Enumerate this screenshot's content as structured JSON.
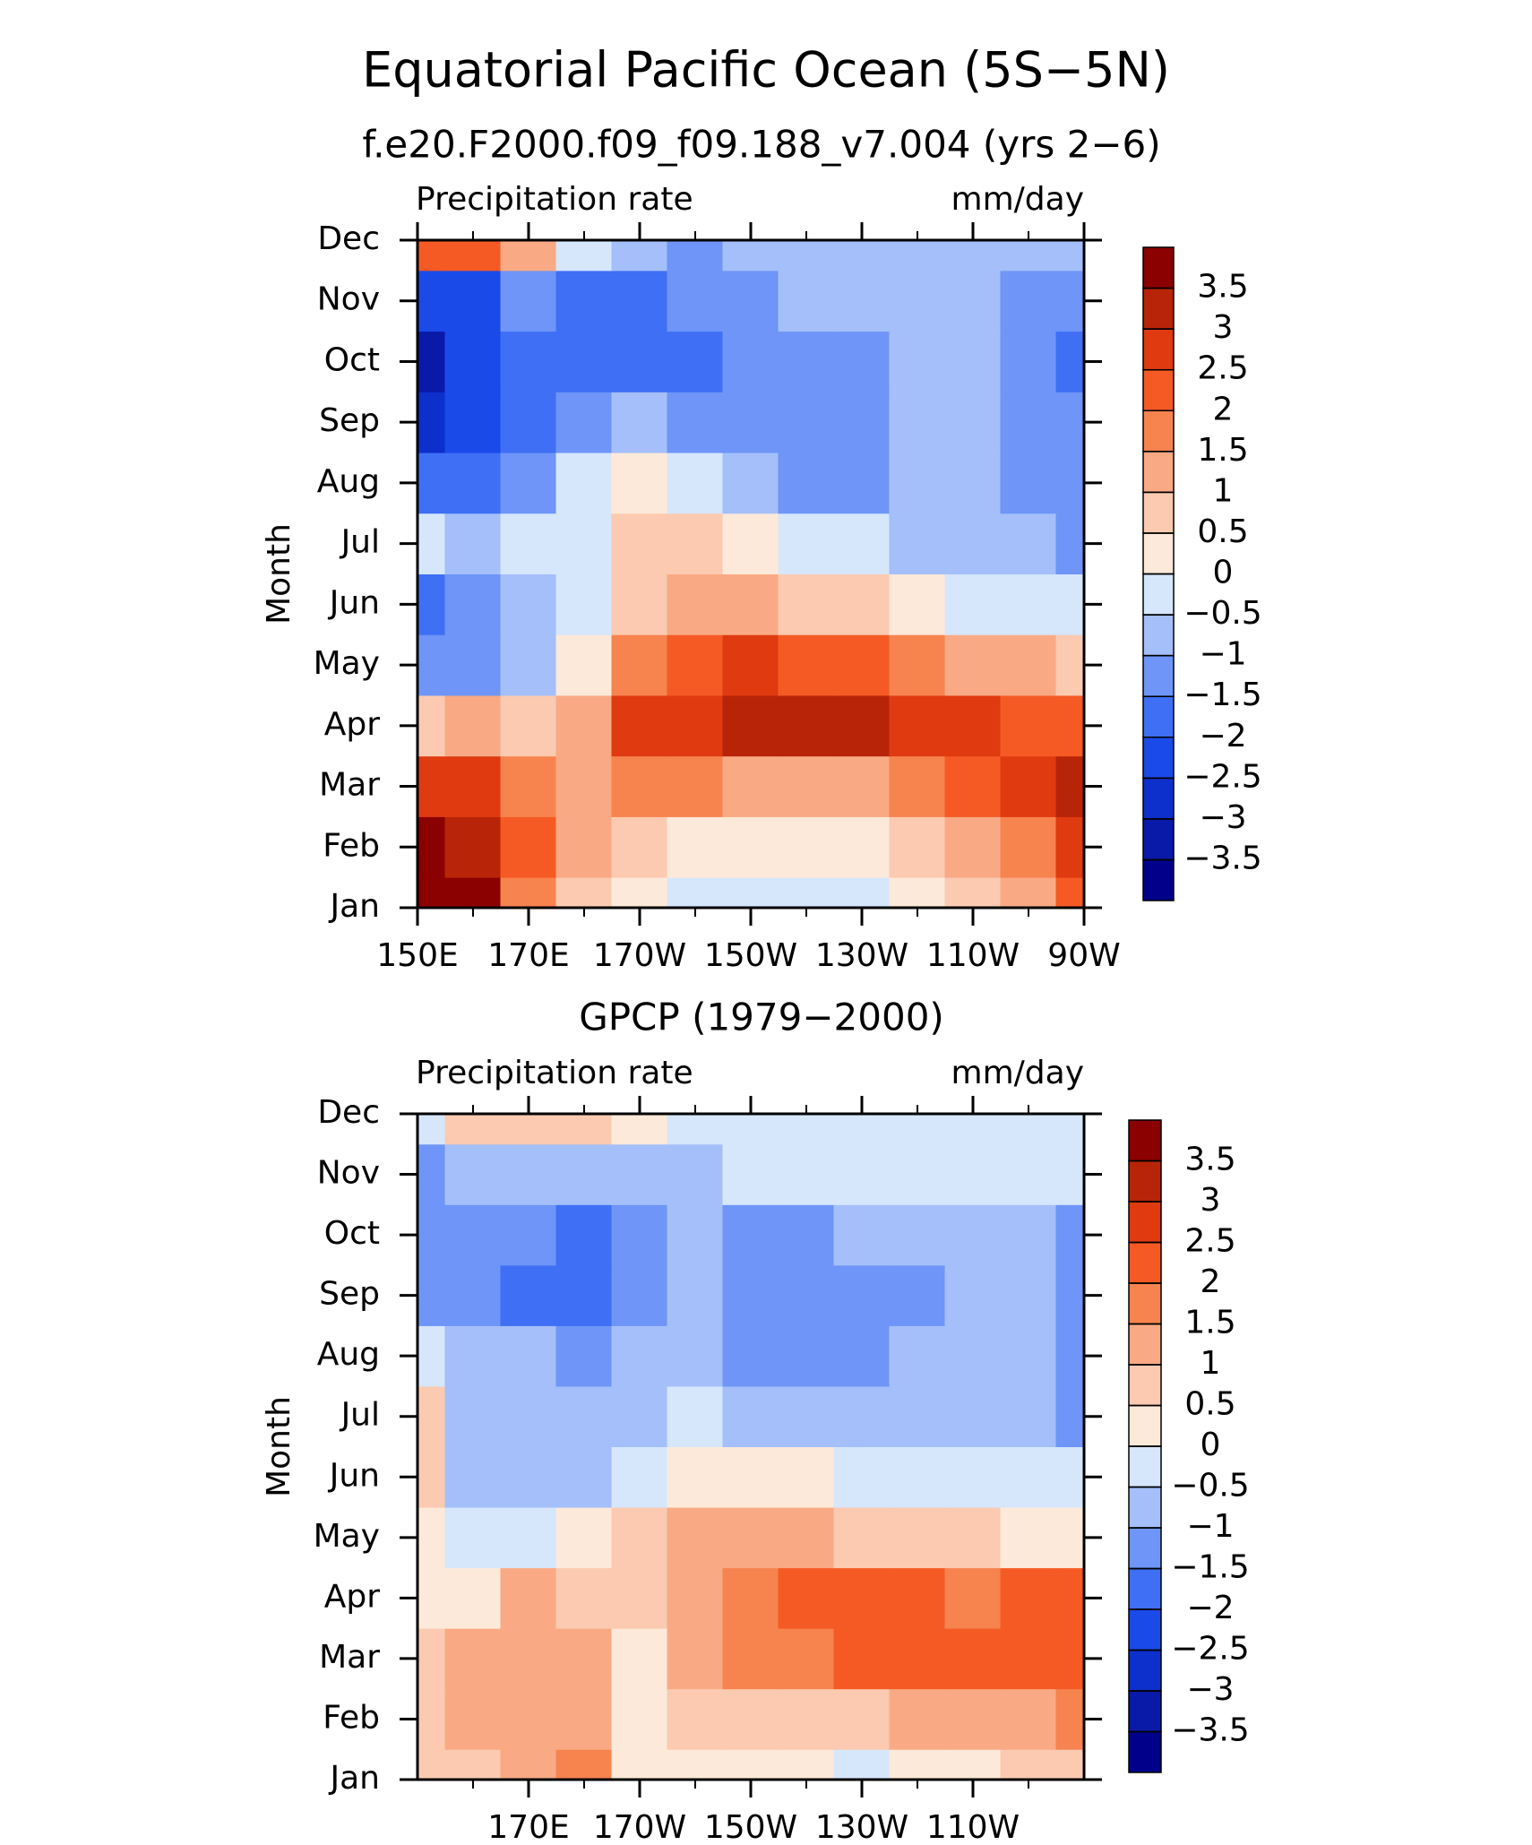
{
  "title": "Equatorial Pacific Ocean (5S−5N)",
  "chart_data": [
    {
      "type": "contour",
      "title": "f.e20.F2000.f09_f09.188_v7.004 (yrs 2−6)",
      "left_label": "Precipitation rate",
      "right_label": "mm/day",
      "ylabel": "Month",
      "x": [
        150,
        160,
        170,
        180,
        190,
        200,
        210,
        220,
        230,
        240,
        250,
        260,
        270
      ],
      "categories": [
        "Jan",
        "Feb",
        "Mar",
        "Apr",
        "May",
        "Jun",
        "Jul",
        "Aug",
        "Sep",
        "Oct",
        "Nov",
        "Dec"
      ],
      "xlim": [
        150,
        270
      ],
      "xticks": [
        {
          "value": 150,
          "label": "150E"
        },
        {
          "value": 170,
          "label": "170E"
        },
        {
          "value": 190,
          "label": "170W"
        },
        {
          "value": 210,
          "label": "150W"
        },
        {
          "value": 230,
          "label": "130W"
        },
        {
          "value": 250,
          "label": "110W"
        },
        {
          "value": 270,
          "label": "90W"
        }
      ],
      "xminorticks": [
        160,
        180,
        200,
        220,
        240,
        260
      ],
      "z": [
        [
          4,
          3.5,
          1.5,
          0.5,
          0.2,
          -0.3,
          -0.3,
          -0.3,
          -0.2,
          0.2,
          0.5,
          1,
          2
        ],
        [
          4,
          3,
          2,
          1,
          0.7,
          0.3,
          0.2,
          0.2,
          0.4,
          0.7,
          1,
          1.5,
          2.5
        ],
        [
          2.5,
          2.5,
          1.5,
          1,
          1.5,
          1.5,
          1.2,
          1.2,
          1.3,
          1.7,
          2,
          2.5,
          3
        ],
        [
          0.7,
          1,
          0.5,
          1.2,
          2.5,
          2.8,
          3.2,
          3.3,
          3.2,
          2.8,
          2.5,
          2.2,
          2
        ],
        [
          -1.5,
          -1.2,
          -1,
          0.3,
          1.5,
          2.2,
          2.5,
          2.3,
          2,
          1.7,
          1.3,
          1,
          0.7
        ],
        [
          -1.7,
          -1.2,
          -1,
          -0.3,
          0.7,
          1.2,
          1.2,
          0.8,
          0.5,
          0.2,
          -0.3,
          -0.5,
          -0.5
        ],
        [
          -0.3,
          -0.7,
          -0.3,
          -0.2,
          0.5,
          0.7,
          0.3,
          -0.3,
          -0.5,
          -0.7,
          -0.7,
          -1,
          -1.2
        ],
        [
          -2,
          -2,
          -1.3,
          -0.5,
          0.2,
          -0.3,
          -1,
          -1.5,
          -1.3,
          -1,
          -0.8,
          -1.2,
          -1.3
        ],
        [
          -2.8,
          -2.5,
          -1.8,
          -1.3,
          -0.8,
          -1.2,
          -1.5,
          -1.5,
          -1.3,
          -0.8,
          -0.8,
          -1.3,
          -1.4
        ],
        [
          -3.3,
          -2.5,
          -2,
          -1.8,
          -1.8,
          -1.7,
          -1.4,
          -1.4,
          -1.2,
          -0.8,
          -0.8,
          -1.2,
          -1.6
        ],
        [
          -2.5,
          -2.3,
          -1.5,
          -1.8,
          -1.8,
          -1.3,
          -1.1,
          -1,
          -0.8,
          -0.7,
          -0.8,
          -1.2,
          -1.3
        ],
        [
          2,
          2.2,
          1,
          -0.3,
          -1,
          -1.2,
          -1,
          -0.7,
          -0.7,
          -0.7,
          -0.7,
          -0.7,
          -0.8
        ]
      ],
      "levels": [
        {
          "value": -3.5,
          "label": "−3.5"
        },
        {
          "value": -3,
          "label": "−3"
        },
        {
          "value": -2.5,
          "label": "−2.5"
        },
        {
          "value": -2,
          "label": "−2"
        },
        {
          "value": -1.5,
          "label": "−1.5"
        },
        {
          "value": -1,
          "label": "−1"
        },
        {
          "value": -0.5,
          "label": "−0.5"
        },
        0,
        0.5,
        1,
        1.5,
        2,
        2.5,
        3,
        3.5
      ],
      "colors": [
        "#00008b",
        "#0a1aa8",
        "#0d2fcc",
        "#1a4ae8",
        "#3f6ff5",
        "#6e95f7",
        "#a4bff9",
        "#d6e6fb",
        "#fde9d9",
        "#fbcab0",
        "#f9aa84",
        "#f7834f",
        "#f55a25",
        "#e03a10",
        "#b82408",
        "#8b0000"
      ]
    },
    {
      "type": "contour",
      "title": "GPCP (1979−2000)",
      "left_label": "Precipitation rate",
      "right_label": "mm/day",
      "ylabel": "Month",
      "x": [
        150,
        160,
        170,
        180,
        190,
        200,
        210,
        220,
        230,
        240,
        250,
        260,
        270
      ],
      "categories": [
        "Jan",
        "Feb",
        "Mar",
        "Apr",
        "May",
        "Jun",
        "Jul",
        "Aug",
        "Sep",
        "Oct",
        "Nov",
        "Dec"
      ],
      "xlim": [
        150,
        270
      ],
      "xticks": [
        {
          "value": 170,
          "label": "170E"
        },
        {
          "value": 190,
          "label": "170W"
        },
        {
          "value": 210,
          "label": "150W"
        },
        {
          "value": 230,
          "label": "130W"
        },
        {
          "value": 250,
          "label": "110W"
        }
      ],
      "xminorticks": [
        160,
        180,
        200,
        220,
        240,
        260
      ],
      "z": [
        [
          0.6,
          0.8,
          1.2,
          1.5,
          0.2,
          0.1,
          0.1,
          0.1,
          -0.1,
          0.1,
          0.3,
          0.5,
          0.8
        ],
        [
          0.8,
          1.2,
          1.3,
          1.2,
          0.3,
          0.5,
          0.7,
          0.7,
          0.8,
          1,
          1.2,
          1.3,
          1.5
        ],
        [
          0.8,
          1.2,
          1.4,
          1,
          0.3,
          1,
          1.5,
          1.8,
          2,
          2.3,
          2,
          2.2,
          2
        ],
        [
          0.3,
          0.4,
          1.2,
          0.7,
          0.7,
          1.2,
          1.6,
          2,
          2.2,
          2.3,
          1.8,
          2.3,
          2
        ],
        [
          0.3,
          -0.3,
          -0.5,
          0.3,
          0.5,
          1,
          1,
          1,
          0.8,
          0.8,
          0.6,
          0.4,
          0.2
        ],
        [
          0.7,
          -0.7,
          -0.8,
          -0.6,
          -0.2,
          0.3,
          0.3,
          0.2,
          -0.1,
          -0.2,
          -0.3,
          -0.3,
          -0.3
        ],
        [
          0.5,
          -0.6,
          -0.8,
          -0.7,
          -0.6,
          -0.5,
          -0.6,
          -0.7,
          -0.7,
          -0.7,
          -0.7,
          -0.8,
          -1.2
        ],
        [
          -0.3,
          -0.7,
          -1,
          -1.1,
          -0.9,
          -0.8,
          -1.2,
          -1.2,
          -1.2,
          -0.9,
          -0.8,
          -1,
          -1.3
        ],
        [
          -1.2,
          -1.3,
          -1.7,
          -2,
          -1.3,
          -1,
          -1.3,
          -1.3,
          -1.3,
          -1.2,
          -0.8,
          -1,
          -1.3
        ],
        [
          -1.2,
          -1.1,
          -1.5,
          -1.6,
          -1.1,
          -0.9,
          -1.1,
          -1.2,
          -1,
          -0.8,
          -0.7,
          -0.9,
          -1.2
        ],
        [
          -1.1,
          -0.7,
          -0.8,
          -0.8,
          -0.7,
          -0.6,
          -0.5,
          -0.4,
          -0.4,
          -0.3,
          -0.3,
          -0.4,
          -0.3
        ],
        [
          -0.3,
          0.5,
          0.8,
          0.6,
          0.4,
          -0.3,
          -0.3,
          -0.3,
          -0.2,
          -0.3,
          -0.3,
          -0.3,
          -0.3
        ]
      ],
      "levels": [
        {
          "value": -3.5,
          "label": "−3.5"
        },
        {
          "value": -3,
          "label": "−3"
        },
        {
          "value": -2.5,
          "label": "−2.5"
        },
        {
          "value": -2,
          "label": "−2"
        },
        {
          "value": -1.5,
          "label": "−1.5"
        },
        {
          "value": -1,
          "label": "−1"
        },
        {
          "value": -0.5,
          "label": "−0.5"
        },
        0,
        0.5,
        1,
        1.5,
        2,
        2.5,
        3,
        3.5
      ],
      "colors": [
        "#00008b",
        "#0a1aa8",
        "#0d2fcc",
        "#1a4ae8",
        "#3f6ff5",
        "#6e95f7",
        "#a4bff9",
        "#d6e6fb",
        "#fde9d9",
        "#fbcab0",
        "#f9aa84",
        "#f7834f",
        "#f55a25",
        "#e03a10",
        "#b82408",
        "#8b0000"
      ]
    }
  ]
}
